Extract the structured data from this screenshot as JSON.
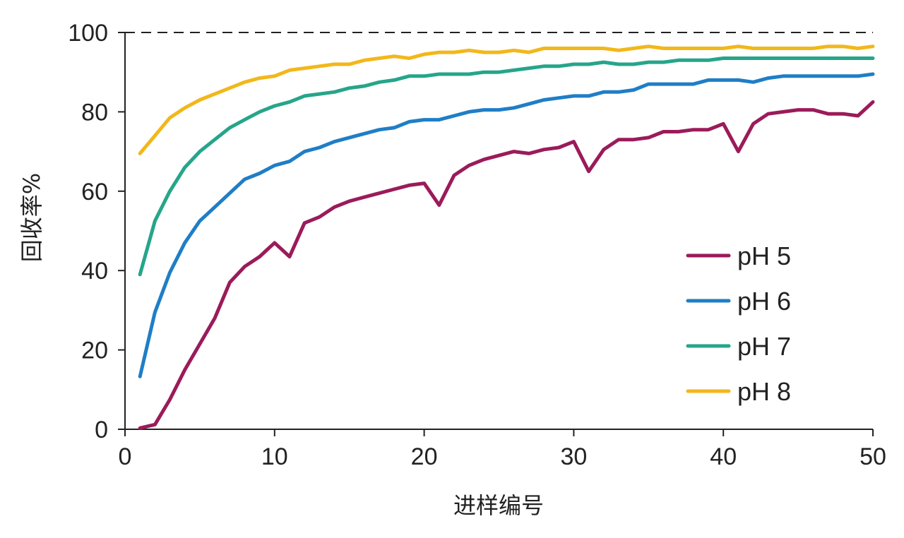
{
  "chart_data": {
    "type": "line",
    "title": "",
    "xlabel": "进样编号",
    "ylabel": "回收率%",
    "xlim": [
      0,
      50
    ],
    "ylim": [
      0,
      100
    ],
    "xticks": [
      0,
      10,
      20,
      30,
      40,
      50
    ],
    "yticks": [
      0,
      20,
      40,
      60,
      80,
      100
    ],
    "reference_line": {
      "y": 100,
      "style": "dashed"
    },
    "legend_position": "right",
    "grid": false,
    "x": [
      1,
      2,
      3,
      4,
      5,
      6,
      7,
      8,
      9,
      10,
      11,
      12,
      13,
      14,
      15,
      16,
      17,
      18,
      19,
      20,
      21,
      22,
      23,
      24,
      25,
      26,
      27,
      28,
      29,
      30,
      31,
      32,
      33,
      34,
      35,
      36,
      37,
      38,
      39,
      40,
      41,
      42,
      43,
      44,
      45,
      46,
      47,
      48,
      49,
      50
    ],
    "series": [
      {
        "name": "pH 5",
        "color": "#9b1b5a",
        "values": [
          0.3,
          1.2,
          7.5,
          15,
          21.5,
          28,
          37,
          41,
          43.5,
          47,
          43.5,
          52,
          53.5,
          56,
          57.5,
          58.5,
          59.5,
          60.5,
          61.5,
          62,
          56.5,
          64,
          66.5,
          68,
          69,
          70,
          69.5,
          70.5,
          71,
          72.5,
          65,
          70.5,
          73,
          73,
          73.5,
          75,
          75,
          75.5,
          75.5,
          77,
          70,
          77,
          79.5,
          80,
          80.5,
          80.5,
          79.5,
          79.5,
          79,
          82.5
        ]
      },
      {
        "name": "pH 6",
        "color": "#1f7ec6",
        "values": [
          13.3,
          29.5,
          39.5,
          47,
          52.5,
          56,
          59.5,
          63,
          64.5,
          66.5,
          67.5,
          70,
          71,
          72.5,
          73.5,
          74.5,
          75.5,
          76,
          77.5,
          78,
          78,
          79,
          80,
          80.5,
          80.5,
          81,
          82,
          83,
          83.5,
          84,
          84,
          85,
          85,
          85.5,
          87,
          87,
          87,
          87,
          88,
          88,
          88,
          87.5,
          88.5,
          89,
          89,
          89,
          89,
          89,
          89,
          89.5
        ]
      },
      {
        "name": "pH 7",
        "color": "#26a58a",
        "values": [
          39,
          52.5,
          60,
          66,
          70,
          73,
          76,
          78,
          80,
          81.5,
          82.5,
          84,
          84.5,
          85,
          86,
          86.5,
          87.5,
          88,
          89,
          89,
          89.5,
          89.5,
          89.5,
          90,
          90,
          90.5,
          91,
          91.5,
          91.5,
          92,
          92,
          92.5,
          92,
          92,
          92.5,
          92.5,
          93,
          93,
          93,
          93.5,
          93.5,
          93.5,
          93.5,
          93.5,
          93.5,
          93.5,
          93.5,
          93.5,
          93.5,
          93.5
        ]
      },
      {
        "name": "pH 8",
        "color": "#f2b71b",
        "values": [
          69.5,
          74,
          78.5,
          81,
          83,
          84.5,
          86,
          87.5,
          88.5,
          89,
          90.5,
          91,
          91.5,
          92,
          92,
          93,
          93.5,
          94,
          93.5,
          94.5,
          95,
          95,
          95.5,
          95,
          95,
          95.5,
          95,
          96,
          96,
          96,
          96,
          96,
          95.5,
          96,
          96.5,
          96,
          96,
          96,
          96,
          96,
          96.5,
          96,
          96,
          96,
          96,
          96,
          96.5,
          96.5,
          96,
          96.5
        ]
      }
    ]
  }
}
